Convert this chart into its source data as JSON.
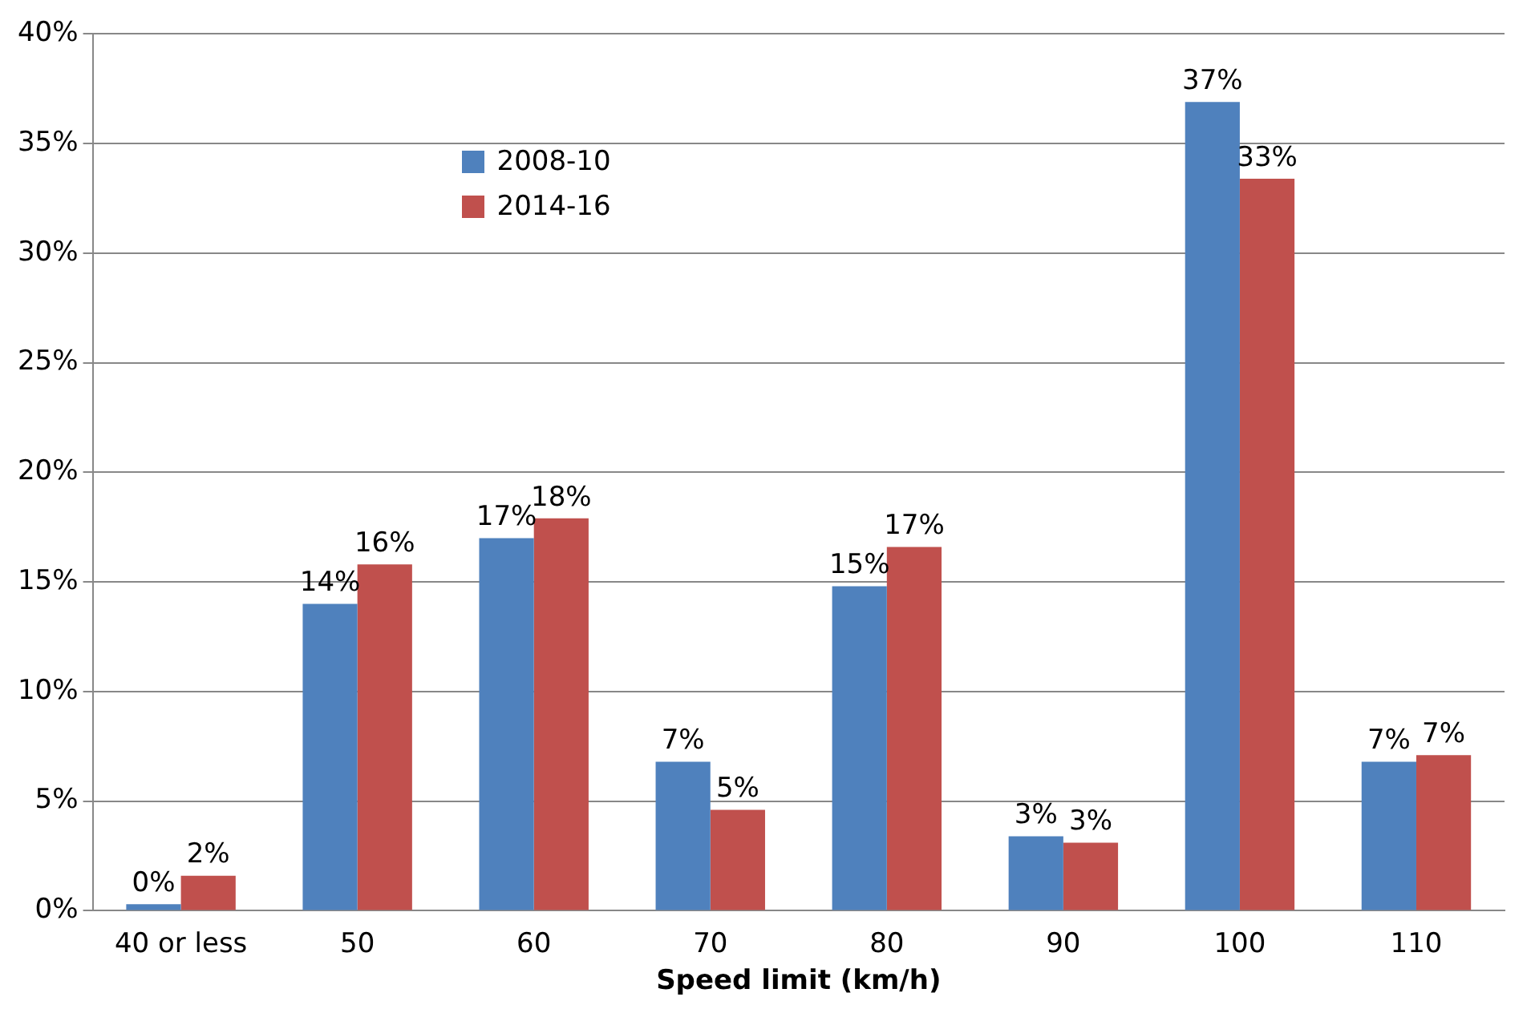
{
  "chart_data": {
    "type": "bar",
    "xlabel": "Speed limit (km/h)",
    "categories": [
      "40 or less",
      "50",
      "60",
      "70",
      "80",
      "90",
      "100",
      "110"
    ],
    "series": [
      {
        "name": "2008-10",
        "color": "#4f81bd",
        "values": [
          0.3,
          14.0,
          17.0,
          6.8,
          14.8,
          3.4,
          36.9,
          6.8
        ],
        "value_labels": [
          "0%",
          "14%",
          "17%",
          "7%",
          "15%",
          "3%",
          "37%",
          "7%"
        ]
      },
      {
        "name": "2014-16",
        "color": "#c0504d",
        "values": [
          1.6,
          15.8,
          17.9,
          4.6,
          16.6,
          3.1,
          33.4,
          7.1
        ],
        "value_labels": [
          "2%",
          "16%",
          "18%",
          "5%",
          "17%",
          "3%",
          "33%",
          "7%"
        ]
      }
    ],
    "ylim": [
      0,
      40
    ],
    "yticks": [
      {
        "value": 0,
        "label": "0%"
      },
      {
        "value": 5,
        "label": "5%"
      },
      {
        "value": 10,
        "label": "10%"
      },
      {
        "value": 15,
        "label": "15%"
      },
      {
        "value": 20,
        "label": "20%"
      },
      {
        "value": 25,
        "label": "25%"
      },
      {
        "value": 30,
        "label": "30%"
      },
      {
        "value": 35,
        "label": "35%"
      },
      {
        "value": 40,
        "label": "40%"
      }
    ],
    "grid": "y",
    "legend": "top left"
  }
}
